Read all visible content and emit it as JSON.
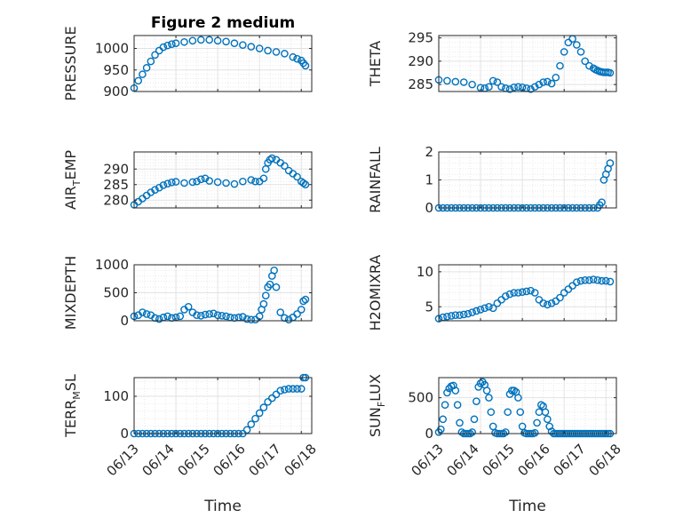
{
  "figure": {
    "title": "Figure 2 medium",
    "xlabel": "Time"
  },
  "chart_data": [
    {
      "type": "scatter",
      "ylabel": "PRESSURE",
      "ylim": [
        900,
        1030
      ],
      "yticks": [
        900,
        950,
        1000
      ],
      "yticklabels": [
        "900",
        "950",
        "1000"
      ],
      "xlim": [
        0,
        4.25
      ],
      "grid": true,
      "marker_color": "#0072BD",
      "x": [
        0,
        0.1,
        0.2,
        0.3,
        0.4,
        0.5,
        0.6,
        0.7,
        0.8,
        0.9,
        1.0,
        1.2,
        1.4,
        1.6,
        1.8,
        2.0,
        2.2,
        2.4,
        2.6,
        2.8,
        3.0,
        3.2,
        3.4,
        3.6,
        3.8,
        3.9,
        4.0,
        4.05,
        4.1
      ],
      "y": [
        908,
        925,
        940,
        955,
        970,
        985,
        995,
        1003,
        1007,
        1010,
        1012,
        1015,
        1018,
        1020,
        1020,
        1018,
        1016,
        1012,
        1008,
        1004,
        1000,
        995,
        992,
        988,
        980,
        976,
        972,
        966,
        960
      ]
    },
    {
      "type": "scatter",
      "ylabel": "THETA",
      "ylim": [
        283.5,
        295.5
      ],
      "yticks": [
        285,
        290,
        295
      ],
      "yticklabels": [
        "285",
        "290",
        "295"
      ],
      "xlim": [
        0,
        4.25
      ],
      "grid": true,
      "marker_color": "#0072BD",
      "x": [
        0,
        0.2,
        0.4,
        0.6,
        0.8,
        1.0,
        1.1,
        1.2,
        1.3,
        1.4,
        1.5,
        1.6,
        1.7,
        1.8,
        1.9,
        2.0,
        2.1,
        2.2,
        2.3,
        2.4,
        2.5,
        2.6,
        2.7,
        2.8,
        2.9,
        3.0,
        3.1,
        3.2,
        3.3,
        3.4,
        3.5,
        3.6,
        3.7,
        3.75,
        3.8,
        3.85,
        3.9,
        3.95,
        4.0,
        4.05,
        4.1
      ],
      "y": [
        286,
        285.8,
        285.6,
        285.5,
        285,
        284.3,
        284.2,
        284.5,
        285.8,
        285.5,
        284.5,
        284.2,
        284,
        284.4,
        284.5,
        284.4,
        284.2,
        284,
        284.5,
        285,
        285.5,
        285.6,
        285.2,
        286.5,
        289,
        292,
        294,
        294.8,
        293.5,
        292,
        290,
        289,
        288.5,
        288.2,
        288,
        287.8,
        287.7,
        287.6,
        287.6,
        287.6,
        287.5
      ]
    },
    {
      "type": "scatter",
      "ylabel": "AIR_TEMP",
      "ylabel_main": "AIR",
      "ylabel_sub": "T",
      "ylabel_rest": "EMP",
      "ylim": [
        277.5,
        295.5
      ],
      "yticks": [
        280,
        285,
        290
      ],
      "yticklabels": [
        "280",
        "285",
        "290"
      ],
      "xlim": [
        0,
        4.25
      ],
      "grid": true,
      "marker_color": "#0072BD",
      "x": [
        0,
        0.1,
        0.2,
        0.3,
        0.4,
        0.5,
        0.6,
        0.7,
        0.8,
        0.9,
        1.0,
        1.2,
        1.4,
        1.5,
        1.6,
        1.7,
        1.8,
        2.0,
        2.2,
        2.4,
        2.6,
        2.8,
        2.9,
        3.0,
        3.1,
        3.15,
        3.2,
        3.25,
        3.3,
        3.4,
        3.5,
        3.6,
        3.7,
        3.8,
        3.9,
        4.0,
        4.05,
        4.1
      ],
      "y": [
        278.5,
        279.5,
        280.5,
        281.5,
        282.5,
        283.3,
        284,
        284.8,
        285.3,
        285.7,
        285.9,
        285.5,
        285.8,
        286,
        286.7,
        287,
        286.2,
        285.8,
        285.5,
        285.2,
        286,
        286.5,
        286,
        286,
        287,
        290,
        292,
        293,
        293.5,
        293,
        292,
        291,
        289.5,
        288.5,
        287.5,
        286,
        285.5,
        285
      ]
    },
    {
      "type": "scatter",
      "ylabel": "RAINFALL",
      "ylim": [
        0,
        2
      ],
      "yticks": [
        0,
        1,
        2
      ],
      "yticklabels": [
        "0",
        "1",
        "2"
      ],
      "xlim": [
        0,
        4.25
      ],
      "grid": true,
      "marker_color": "#0072BD",
      "x": [
        0,
        0.1,
        0.2,
        0.3,
        0.4,
        0.5,
        0.6,
        0.7,
        0.8,
        0.9,
        1.0,
        1.1,
        1.2,
        1.3,
        1.4,
        1.5,
        1.6,
        1.7,
        1.8,
        1.9,
        2.0,
        2.1,
        2.2,
        2.3,
        2.4,
        2.5,
        2.6,
        2.7,
        2.8,
        2.9,
        3.0,
        3.1,
        3.2,
        3.3,
        3.4,
        3.5,
        3.6,
        3.7,
        3.8,
        3.85,
        3.9,
        3.95,
        4.0,
        4.05,
        4.1
      ],
      "y": [
        0,
        0,
        0,
        0,
        0,
        0,
        0,
        0,
        0,
        0,
        0,
        0,
        0,
        0,
        0,
        0,
        0,
        0,
        0,
        0,
        0,
        0,
        0,
        0,
        0,
        0,
        0,
        0,
        0,
        0,
        0,
        0,
        0,
        0,
        0,
        0,
        0,
        0,
        0,
        0.1,
        0.2,
        1.0,
        1.2,
        1.4,
        1.6
      ]
    },
    {
      "type": "scatter",
      "ylabel": "MIXDEPTH",
      "ylim": [
        0,
        1000
      ],
      "yticks": [
        0,
        500,
        1000
      ],
      "yticklabels": [
        "0",
        "500",
        "1000"
      ],
      "xlim": [
        0,
        4.25
      ],
      "grid": true,
      "marker_color": "#0072BD",
      "x": [
        0,
        0.1,
        0.2,
        0.3,
        0.4,
        0.5,
        0.6,
        0.7,
        0.8,
        0.9,
        1.0,
        1.1,
        1.2,
        1.3,
        1.4,
        1.5,
        1.6,
        1.7,
        1.8,
        1.9,
        2.0,
        2.1,
        2.2,
        2.3,
        2.4,
        2.5,
        2.6,
        2.7,
        2.8,
        2.9,
        3.0,
        3.05,
        3.1,
        3.15,
        3.2,
        3.25,
        3.3,
        3.35,
        3.4,
        3.5,
        3.6,
        3.7,
        3.8,
        3.9,
        4.0,
        4.05,
        4.1
      ],
      "y": [
        80,
        100,
        150,
        120,
        100,
        50,
        30,
        60,
        80,
        50,
        60,
        80,
        200,
        250,
        150,
        100,
        90,
        110,
        120,
        130,
        100,
        90,
        80,
        60,
        50,
        60,
        70,
        30,
        20,
        20,
        80,
        200,
        300,
        450,
        600,
        650,
        800,
        900,
        600,
        150,
        50,
        20,
        60,
        120,
        200,
        350,
        380
      ]
    },
    {
      "type": "scatter",
      "ylabel": "H2OMIXRA",
      "ylim": [
        3,
        11
      ],
      "yticks": [
        5,
        10
      ],
      "yticklabels": [
        "5",
        "10"
      ],
      "xlim": [
        0,
        4.25
      ],
      "grid": true,
      "marker_color": "#0072BD",
      "x": [
        0,
        0.1,
        0.2,
        0.3,
        0.4,
        0.5,
        0.6,
        0.7,
        0.8,
        0.9,
        1.0,
        1.1,
        1.2,
        1.3,
        1.4,
        1.5,
        1.6,
        1.7,
        1.8,
        1.9,
        2.0,
        2.1,
        2.2,
        2.3,
        2.4,
        2.5,
        2.6,
        2.7,
        2.8,
        2.9,
        3.0,
        3.1,
        3.2,
        3.3,
        3.4,
        3.5,
        3.6,
        3.7,
        3.8,
        3.9,
        4.0,
        4.1
      ],
      "y": [
        3.3,
        3.5,
        3.6,
        3.7,
        3.8,
        3.8,
        3.9,
        4.0,
        4.2,
        4.4,
        4.6,
        4.8,
        5.0,
        4.8,
        5.5,
        6.0,
        6.5,
        6.8,
        7.0,
        7.0,
        7.1,
        7.2,
        7.3,
        7.0,
        6.0,
        5.5,
        5.3,
        5.5,
        5.8,
        6.3,
        7.0,
        7.5,
        8.0,
        8.5,
        8.7,
        8.8,
        8.8,
        8.9,
        8.8,
        8.7,
        8.7,
        8.6
      ]
    },
    {
      "type": "scatter",
      "ylabel": "TERR_MSL",
      "ylabel_main": "TERR",
      "ylabel_sub": "M",
      "ylabel_rest": "SL",
      "ylim": [
        0,
        150
      ],
      "yticks": [
        0,
        100
      ],
      "yticklabels": [
        "0",
        "100"
      ],
      "xlim": [
        0,
        4.25
      ],
      "xticks": [
        0,
        1,
        2,
        3,
        4,
        5
      ],
      "xticklabels": [
        "06/13",
        "06/14",
        "06/15",
        "06/16",
        "06/17",
        "06/18"
      ],
      "grid": true,
      "marker_color": "#0072BD",
      "x": [
        0,
        0.1,
        0.2,
        0.3,
        0.4,
        0.5,
        0.6,
        0.7,
        0.8,
        0.9,
        1.0,
        1.1,
        1.2,
        1.3,
        1.4,
        1.5,
        1.6,
        1.7,
        1.8,
        1.9,
        2.0,
        2.1,
        2.2,
        2.3,
        2.4,
        2.5,
        2.6,
        2.7,
        2.8,
        2.9,
        3.0,
        3.1,
        3.2,
        3.3,
        3.4,
        3.5,
        3.6,
        3.7,
        3.8,
        3.9,
        4.0,
        4.05,
        4.1
      ],
      "y": [
        0,
        0,
        0,
        0,
        0,
        0,
        0,
        0,
        0,
        0,
        0,
        0,
        0,
        0,
        0,
        0,
        0,
        0,
        0,
        0,
        0,
        0,
        0,
        0,
        0,
        0,
        0,
        10,
        25,
        40,
        55,
        70,
        85,
        95,
        105,
        115,
        118,
        120,
        120,
        120,
        120,
        150,
        150
      ]
    },
    {
      "type": "scatter",
      "ylabel": "SUN_FLUX",
      "ylabel_main": "SUN",
      "ylabel_sub": "F",
      "ylabel_rest": "LUX",
      "ylim": [
        0,
        780
      ],
      "yticks": [
        0,
        500
      ],
      "yticklabels": [
        "0",
        "500"
      ],
      "xlim": [
        0,
        4.25
      ],
      "xticks": [
        0,
        1,
        2,
        3,
        4,
        5
      ],
      "xticklabels": [
        "06/13",
        "06/14",
        "06/15",
        "06/16",
        "06/17",
        "06/18"
      ],
      "grid": true,
      "marker_color": "#0072BD",
      "x": [
        0,
        0.05,
        0.1,
        0.15,
        0.2,
        0.25,
        0.3,
        0.35,
        0.4,
        0.45,
        0.5,
        0.55,
        0.6,
        0.65,
        0.7,
        0.75,
        0.8,
        0.85,
        0.9,
        0.95,
        1.0,
        1.05,
        1.1,
        1.15,
        1.2,
        1.25,
        1.3,
        1.35,
        1.4,
        1.45,
        1.5,
        1.55,
        1.6,
        1.65,
        1.7,
        1.75,
        1.8,
        1.85,
        1.9,
        1.95,
        2.0,
        2.05,
        2.1,
        2.15,
        2.2,
        2.25,
        2.3,
        2.35,
        2.4,
        2.45,
        2.5,
        2.55,
        2.6,
        2.65,
        2.7,
        2.75,
        2.8,
        2.85,
        2.9,
        2.95,
        3.0,
        3.05,
        3.1,
        3.15,
        3.2,
        3.25,
        3.3,
        3.35,
        3.4,
        3.45,
        3.5,
        3.55,
        3.6,
        3.65,
        3.7,
        3.75,
        3.8,
        3.85,
        3.9,
        3.95,
        4.0,
        4.05,
        4.1
      ],
      "y": [
        20,
        60,
        200,
        400,
        570,
        630,
        660,
        670,
        600,
        400,
        150,
        20,
        0,
        0,
        0,
        0,
        20,
        200,
        450,
        650,
        700,
        720,
        680,
        600,
        500,
        300,
        100,
        10,
        0,
        0,
        0,
        0,
        20,
        300,
        550,
        600,
        600,
        580,
        500,
        300,
        100,
        10,
        0,
        0,
        0,
        0,
        10,
        150,
        300,
        400,
        380,
        300,
        200,
        100,
        30,
        0,
        0,
        0,
        0,
        0,
        0,
        0,
        0,
        0,
        0,
        0,
        0,
        0,
        0,
        0,
        0,
        0,
        0,
        0,
        0,
        0,
        0,
        0,
        0,
        0,
        0,
        0,
        0
      ]
    }
  ]
}
